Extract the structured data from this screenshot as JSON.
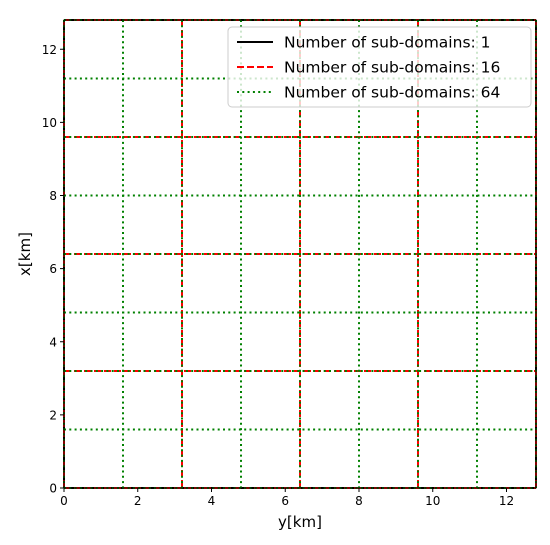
{
  "chart_data": {
    "type": "line",
    "title": "",
    "xlabel": "y[km]",
    "ylabel": "x[km]",
    "xlim": [
      0,
      12.8
    ],
    "ylim": [
      0,
      12.8
    ],
    "xticks": [
      0,
      2,
      4,
      6,
      8,
      10,
      12
    ],
    "yticks": [
      0,
      2,
      4,
      6,
      8,
      10,
      12
    ],
    "xtick_labels": [
      "0",
      "2",
      "4",
      "6",
      "8",
      "10",
      "12"
    ],
    "ytick_labels": [
      "0",
      "2",
      "4",
      "6",
      "8",
      "10",
      "12"
    ],
    "grid": false,
    "legend_position": "top-right",
    "series": [
      {
        "name": "Number of sub-domains: 1",
        "color": "#000000",
        "style": "solid",
        "vertical_lines_at_y": [
          0,
          12.8
        ],
        "horizontal_lines_at_x": [
          0,
          12.8
        ]
      },
      {
        "name": "Number of sub-domains: 16",
        "color": "#ff0000",
        "style": "dashed",
        "vertical_lines_at_y": [
          0,
          3.2,
          6.4,
          9.6,
          12.8
        ],
        "horizontal_lines_at_x": [
          0,
          3.2,
          6.4,
          9.6,
          12.8
        ]
      },
      {
        "name": "Number of sub-domains: 64",
        "color": "#008000",
        "style": "dotted",
        "vertical_lines_at_y": [
          0,
          1.6,
          3.2,
          4.8,
          6.4,
          8.0,
          9.6,
          11.2,
          12.8
        ],
        "horizontal_lines_at_x": [
          0,
          1.6,
          3.2,
          4.8,
          6.4,
          8.0,
          9.6,
          11.2,
          12.8
        ]
      }
    ]
  }
}
